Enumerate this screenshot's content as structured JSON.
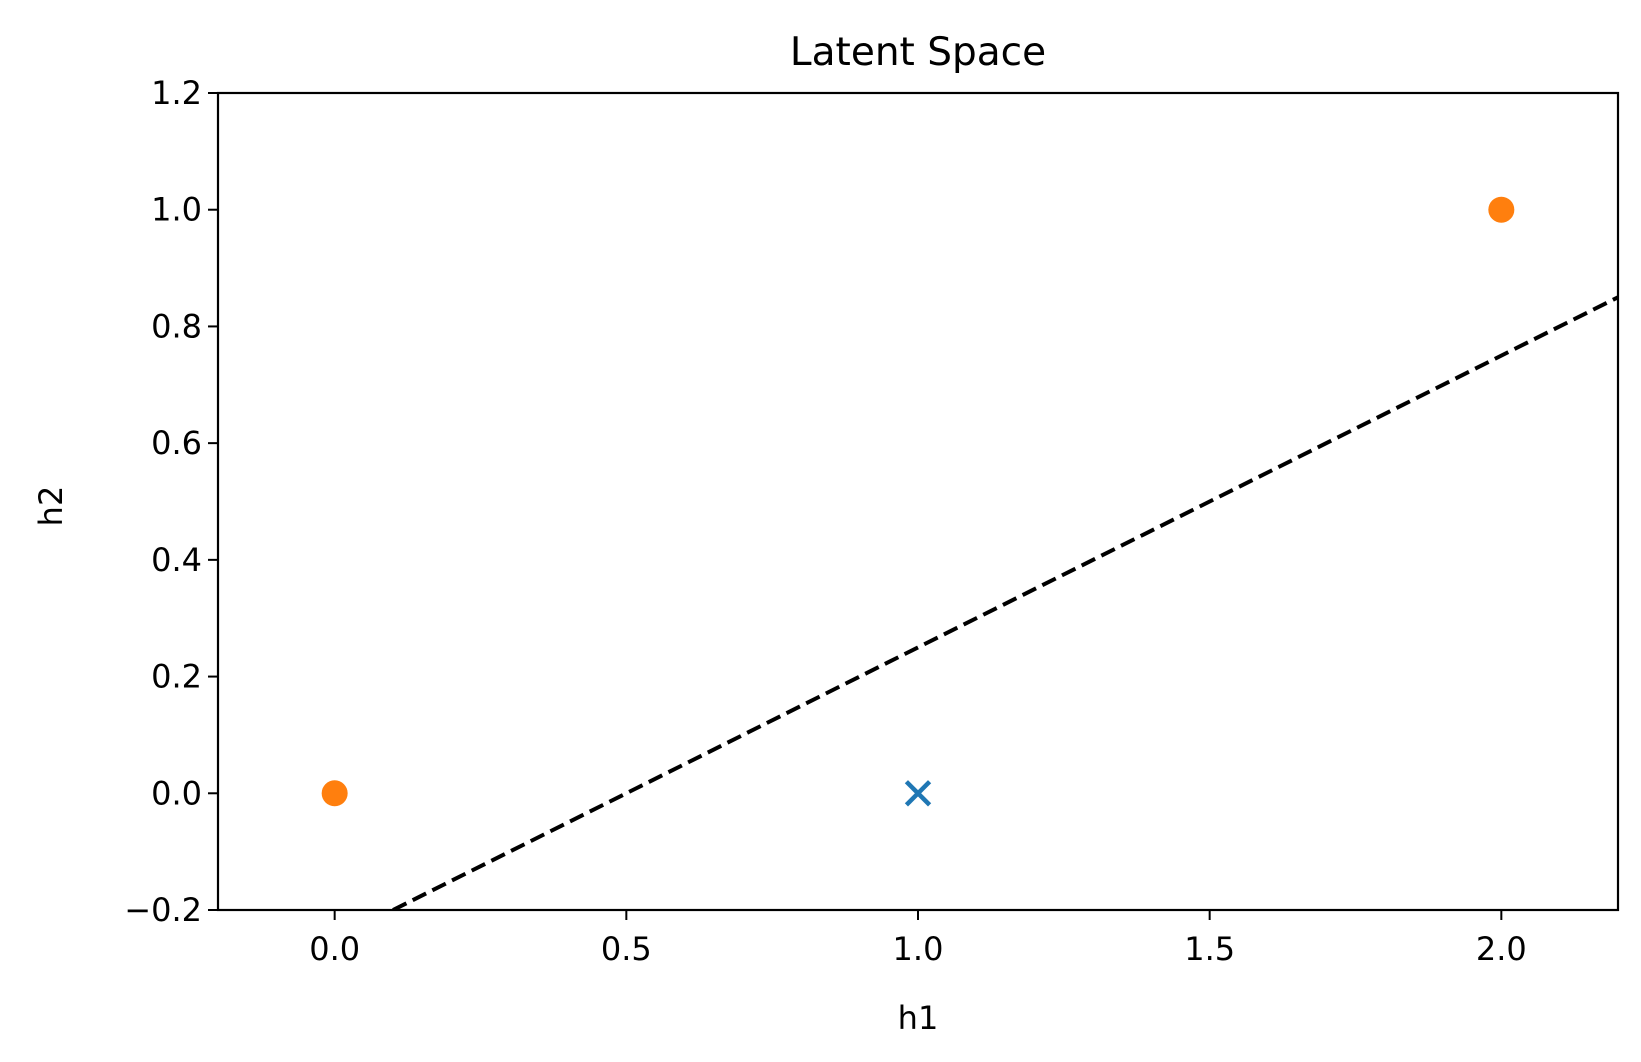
{
  "chart_data": {
    "type": "scatter",
    "title": "Latent Space",
    "xlabel": "h1",
    "ylabel": "h2",
    "xlim": [
      -0.2,
      2.2
    ],
    "ylim": [
      -0.2,
      1.2
    ],
    "xticks": [
      0.0,
      0.5,
      1.0,
      1.5,
      2.0
    ],
    "xtick_labels": [
      "0.0",
      "0.5",
      "1.0",
      "1.5",
      "2.0"
    ],
    "yticks": [
      -0.2,
      0.0,
      0.2,
      0.4,
      0.6,
      0.8,
      1.0,
      1.2
    ],
    "ytick_labels": [
      "−0.2",
      "0.0",
      "0.2",
      "0.4",
      "0.6",
      "0.8",
      "1.0",
      "1.2"
    ],
    "grid": false,
    "series": [
      {
        "marker": "x",
        "color": "#1f77b4",
        "points": [
          [
            1.0,
            0.0
          ]
        ]
      },
      {
        "marker": "circle",
        "color": "#ff7f0e",
        "points": [
          [
            0.0,
            0.0
          ],
          [
            2.0,
            1.0
          ]
        ]
      }
    ],
    "lines": [
      {
        "style": "dashed",
        "color": "#000000",
        "points": [
          [
            0.1,
            -0.2
          ],
          [
            2.2,
            0.85
          ]
        ]
      }
    ]
  }
}
